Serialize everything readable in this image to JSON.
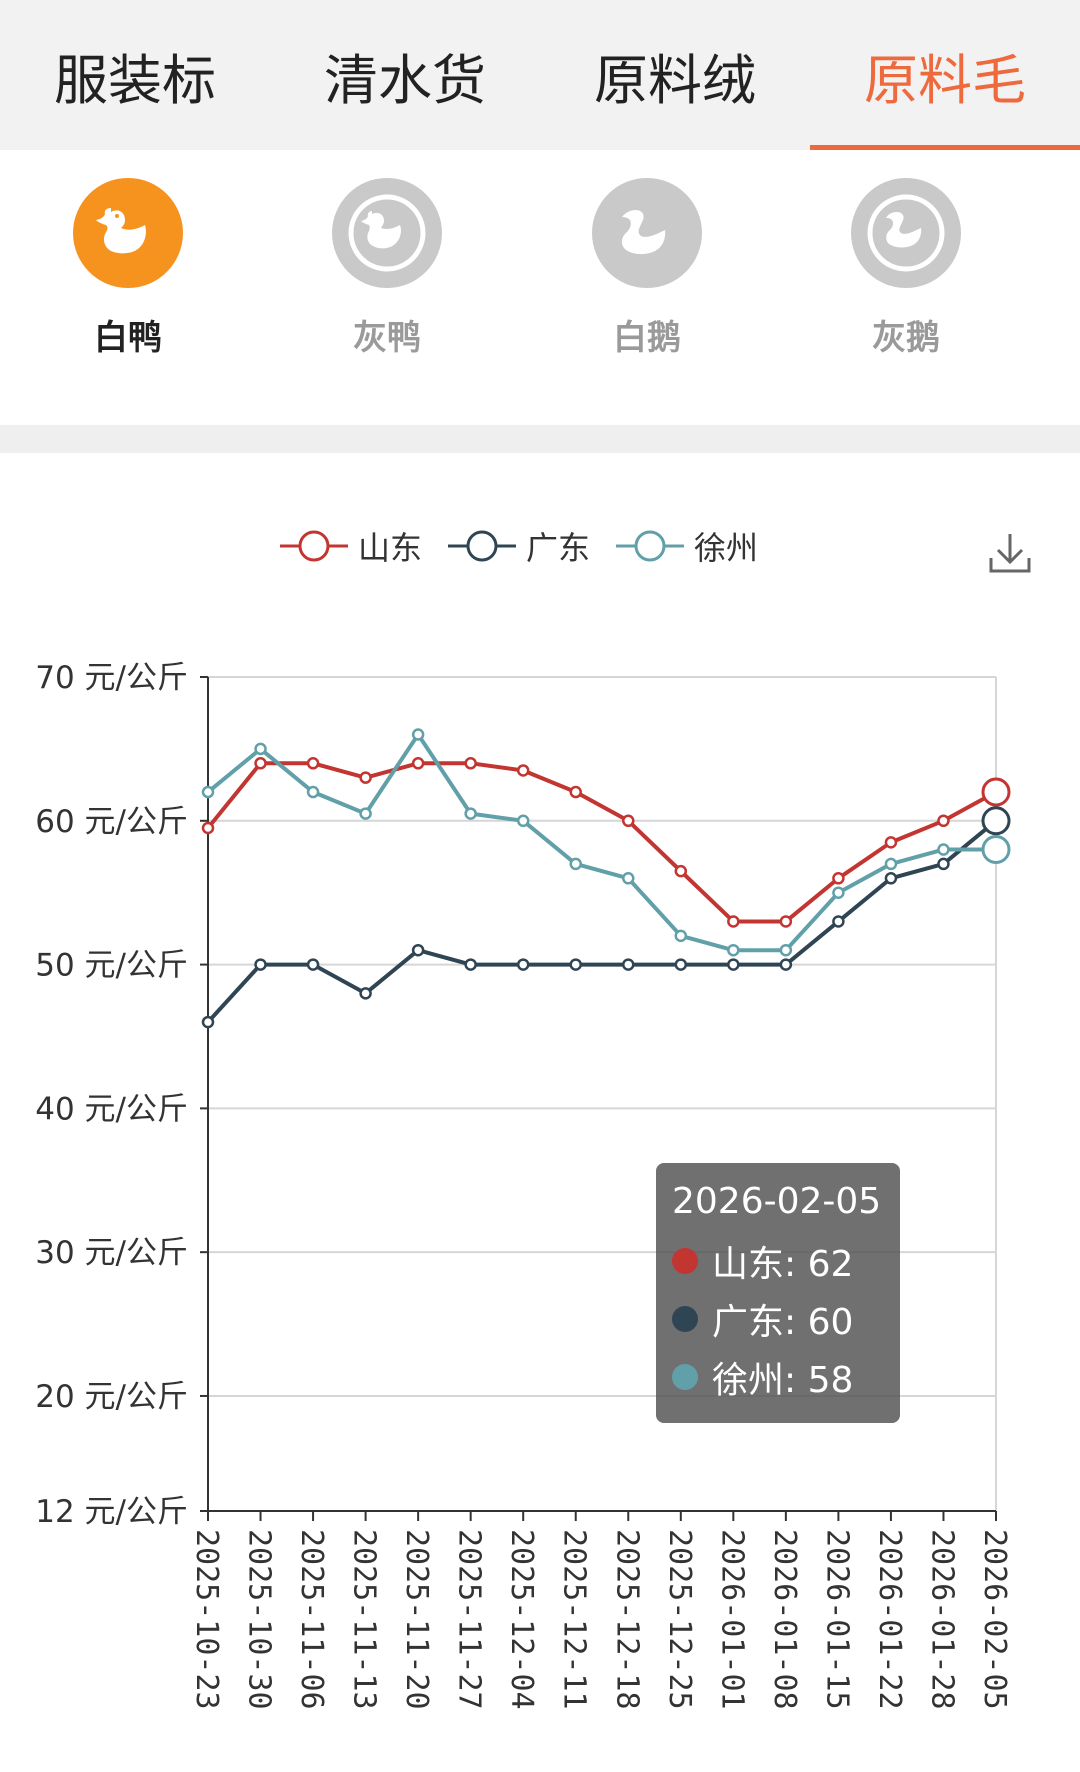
{
  "tabs": [
    {
      "label": "服装标",
      "active": false
    },
    {
      "label": "清水货",
      "active": false
    },
    {
      "label": "原料绒",
      "active": false
    },
    {
      "label": "原料毛",
      "active": true
    }
  ],
  "categories": [
    {
      "label": "白鸭",
      "icon": "duck-icon",
      "active": true
    },
    {
      "label": "灰鸭",
      "icon": "duck-icon",
      "active": false
    },
    {
      "label": "白鹅",
      "icon": "goose-icon",
      "active": false
    },
    {
      "label": "灰鹅",
      "icon": "goose-icon",
      "active": false
    }
  ],
  "colors": {
    "accent": "#ee6a3c",
    "icon_active": "#f6931f",
    "icon_inactive": "#c9c9c9"
  },
  "chart_data": {
    "type": "line",
    "x": [
      "2025-10-23",
      "2025-10-30",
      "2025-11-06",
      "2025-11-13",
      "2025-11-20",
      "2025-11-27",
      "2025-12-04",
      "2025-12-11",
      "2025-12-18",
      "2025-12-25",
      "2026-01-01",
      "2026-01-08",
      "2026-01-15",
      "2026-01-22",
      "2026-01-28",
      "2026-02-05"
    ],
    "series": [
      {
        "name": "山东",
        "color": "#c23531",
        "values": [
          59.5,
          64,
          64,
          63,
          64,
          64,
          63.5,
          62,
          60,
          56.5,
          53,
          53,
          56,
          58.5,
          60,
          62
        ]
      },
      {
        "name": "广东",
        "color": "#2f4554",
        "values": [
          46,
          50,
          50,
          48,
          51,
          50,
          50,
          50,
          50,
          50,
          50,
          50,
          53,
          56,
          57,
          60
        ]
      },
      {
        "name": "徐州",
        "color": "#61a0a8",
        "values": [
          62,
          65,
          62,
          60.5,
          66,
          60.5,
          60,
          57,
          56,
          52,
          51,
          51,
          55,
          57,
          58,
          58
        ]
      }
    ],
    "ylim": [
      12,
      70
    ],
    "yticks": [
      12,
      20,
      30,
      40,
      50,
      60,
      70
    ],
    "ytick_suffix": " 元/公斤",
    "legend_position": "top",
    "grid": true
  },
  "tooltip": {
    "date": "2026-02-05",
    "rows": [
      {
        "label": "山东: 62",
        "color": "#c23531"
      },
      {
        "label": "广东: 60",
        "color": "#2f4554"
      },
      {
        "label": "徐州: 58",
        "color": "#61a0a8"
      }
    ]
  }
}
